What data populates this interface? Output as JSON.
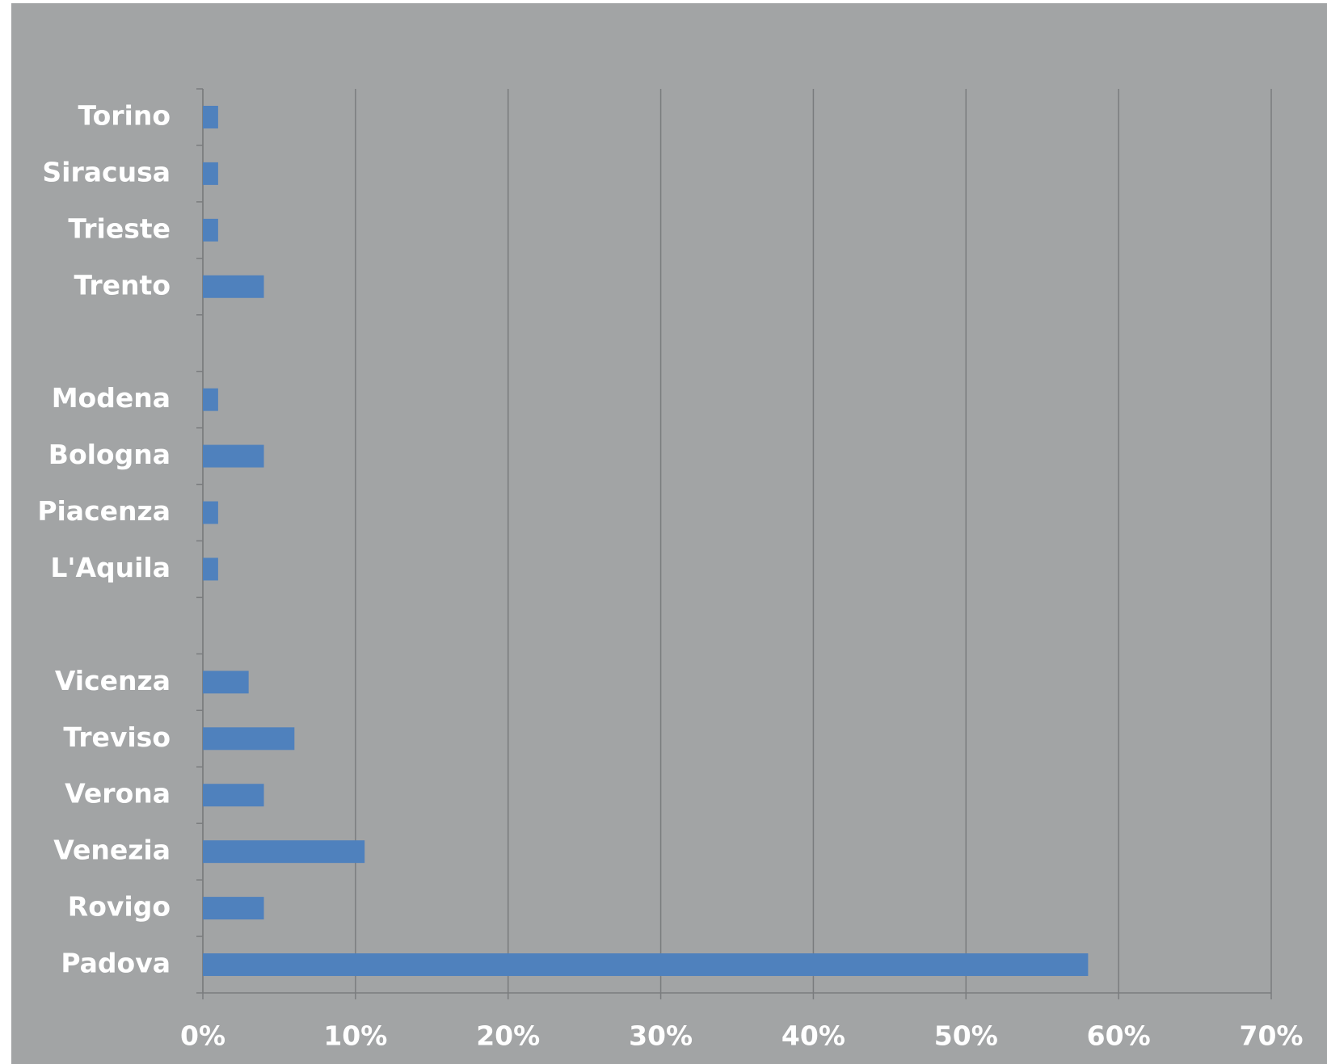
{
  "chart_data": {
    "type": "hbar",
    "categories": [
      "Torino",
      "Siracusa",
      "Trieste",
      "Trento",
      null,
      "Modena",
      "Bologna",
      "Piacenza",
      "L'Aquila",
      null,
      "Vicenza",
      "Treviso",
      "Verona",
      "Venezia",
      "Rovigo",
      "Padova"
    ],
    "values": [
      1,
      1,
      1,
      4,
      null,
      1,
      4,
      1,
      1,
      null,
      3,
      6,
      4,
      10.6,
      4,
      58
    ],
    "color": "#4f81bd",
    "xlim": [
      0,
      70
    ],
    "xticks": [
      {
        "value": 0,
        "label": "0%"
      },
      {
        "value": 10,
        "label": "10%"
      },
      {
        "value": 20,
        "label": "20%"
      },
      {
        "value": 30,
        "label": "30%"
      },
      {
        "value": 40,
        "label": "40%"
      },
      {
        "value": 50,
        "label": "50%"
      },
      {
        "value": 60,
        "label": "60%"
      },
      {
        "value": 70,
        "label": "70%"
      }
    ],
    "grid": true
  }
}
